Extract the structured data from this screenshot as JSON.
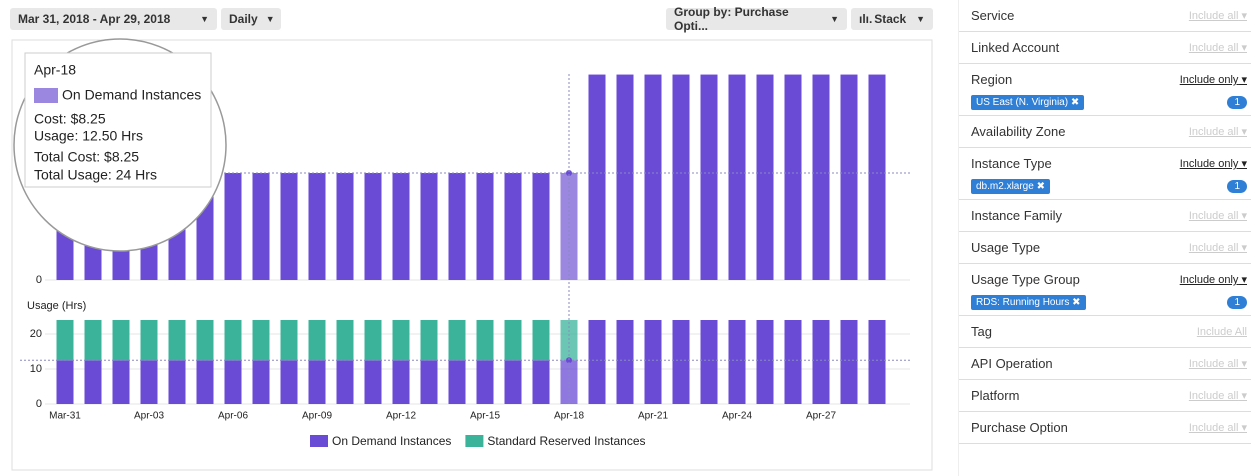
{
  "toolbar": {
    "date_range": "Mar 31, 2018 - Apr 29, 2018",
    "granularity": "Daily",
    "group_by": "Group by: Purchase Opti...",
    "view": "Stack"
  },
  "chart_data": [
    {
      "type": "bar",
      "values": [
        8.25,
        8.25,
        8.25,
        8.25,
        8.25,
        8.25,
        8.25,
        8.25,
        8.25,
        8.25,
        8.25,
        8.25,
        8.25,
        8.25,
        8.25,
        8.25,
        8.25,
        8.25,
        8.25,
        15.84,
        15.84,
        15.84,
        15.84,
        15.84,
        15.84,
        15.84,
        15.84,
        15.84,
        15.84,
        15.84
      ],
      "color": "#6a4bd6",
      "ylim": [
        0,
        16.5
      ],
      "yticks": [
        0
      ]
    },
    {
      "type": "stacked-bar",
      "y_label": "Usage (Hrs)",
      "categories": [
        "Mar-31",
        null,
        null,
        "Apr-03",
        null,
        null,
        "Apr-06",
        null,
        null,
        "Apr-09",
        null,
        null,
        "Apr-12",
        null,
        null,
        "Apr-15",
        null,
        null,
        "Apr-18",
        null,
        null,
        "Apr-21",
        null,
        null,
        "Apr-24",
        null,
        null,
        "Apr-27",
        null,
        null
      ],
      "series": [
        {
          "name": "On Demand Instances",
          "color": "#6a4bd6",
          "values": [
            12.5,
            12.5,
            12.5,
            12.5,
            12.5,
            12.5,
            12.5,
            12.5,
            12.5,
            12.5,
            12.5,
            12.5,
            12.5,
            12.5,
            12.5,
            12.5,
            12.5,
            12.5,
            12.5,
            24,
            24,
            24,
            24,
            24,
            24,
            24,
            24,
            24,
            24,
            24
          ]
        },
        {
          "name": "Standard Reserved Instances",
          "color": "#3bb39b",
          "values": [
            11.5,
            11.5,
            11.5,
            11.5,
            11.5,
            11.5,
            11.5,
            11.5,
            11.5,
            11.5,
            11.5,
            11.5,
            11.5,
            11.5,
            11.5,
            11.5,
            11.5,
            11.5,
            11.5,
            0,
            0,
            0,
            0,
            0,
            0,
            0,
            0,
            0,
            0,
            0
          ]
        }
      ],
      "ylim": [
        0,
        25
      ],
      "yticks": [
        0,
        10,
        20
      ],
      "grid": true,
      "legend": "bottom"
    }
  ],
  "tooltip": {
    "title": "Apr-18",
    "series": "On Demand Instances",
    "cost": "Cost: $8.25",
    "usage": "Usage: 12.50 Hrs",
    "total_cost": "Total Cost: $8.25",
    "total_usage": "Total Usage: 24 Hrs"
  },
  "filters": [
    {
      "label": "Service",
      "control": "Include all"
    },
    {
      "label": "Linked Account",
      "control": "Include all"
    },
    {
      "label": "Region",
      "control": "Include only",
      "chip": "US East (N. Virginia)",
      "count": 1
    },
    {
      "label": "Availability Zone",
      "control": "Include all"
    },
    {
      "label": "Instance Type",
      "control": "Include only",
      "chip": "db.m2.xlarge",
      "count": 1
    },
    {
      "label": "Instance Family",
      "control": "Include all"
    },
    {
      "label": "Usage Type",
      "control": "Include all"
    },
    {
      "label": "Usage Type Group",
      "control": "Include only",
      "chip": "RDS: Running Hours",
      "count": 1
    },
    {
      "label": "Tag",
      "control": "Include All"
    },
    {
      "label": "API Operation",
      "control": "Include all"
    },
    {
      "label": "Platform",
      "control": "Include all"
    },
    {
      "label": "Purchase Option",
      "control": "Include all"
    }
  ]
}
